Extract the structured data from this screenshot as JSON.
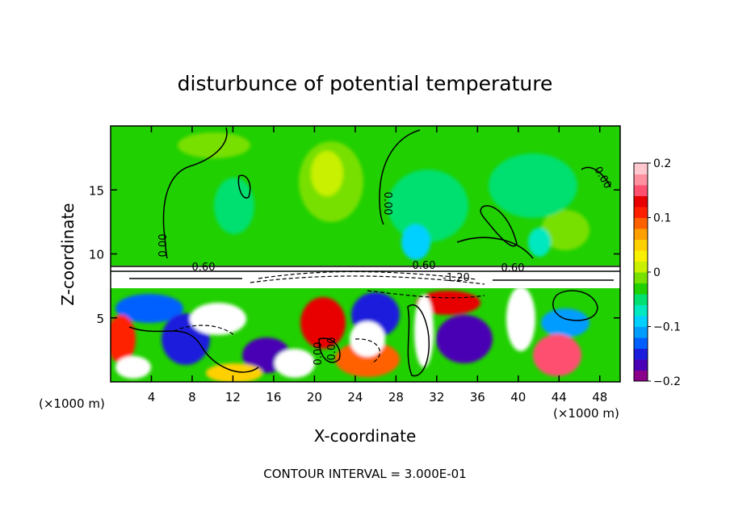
{
  "chart_data": {
    "type": "heatmap",
    "title": "disturbunce of potential temperature",
    "xlabel": "X-coordinate",
    "ylabel": "Z-coordinate",
    "x_unit_label": "(×1000 m)",
    "x_unit_label_right": "(×1000 m)",
    "xlim": [
      0,
      50
    ],
    "ylim": [
      0,
      20
    ],
    "x_ticks": [
      4,
      8,
      12,
      16,
      20,
      24,
      28,
      32,
      36,
      40,
      44,
      48
    ],
    "y_ticks": [
      5,
      10,
      15
    ],
    "colorbar": {
      "range": [
        -0.2,
        0.2
      ],
      "tick_values": [
        0.2,
        0.1,
        0,
        -0.1,
        -0.2
      ],
      "tick_labels": [
        "0.2",
        "0.1",
        "0",
        "−0.1",
        "−0.2"
      ],
      "colors": [
        "#8a008a",
        "#4a00b4",
        "#1c1cdc",
        "#0060ff",
        "#009cff",
        "#00d0ff",
        "#00e8c0",
        "#00e070",
        "#20d000",
        "#78e000",
        "#c8f000",
        "#f8f000",
        "#ffd000",
        "#ffa000",
        "#ff6000",
        "#ff2000",
        "#e80000",
        "#ff5070",
        "#ff90a0",
        "#ffc8d0"
      ]
    },
    "contour_interval_text": "CONTOUR INTERVAL = 3.000E-01",
    "contour_labels": [
      "0.00",
      "0.00",
      "0.00",
      "0.00",
      "0.00",
      "0.60",
      "0.60",
      "0.60",
      "-1.20"
    ]
  }
}
